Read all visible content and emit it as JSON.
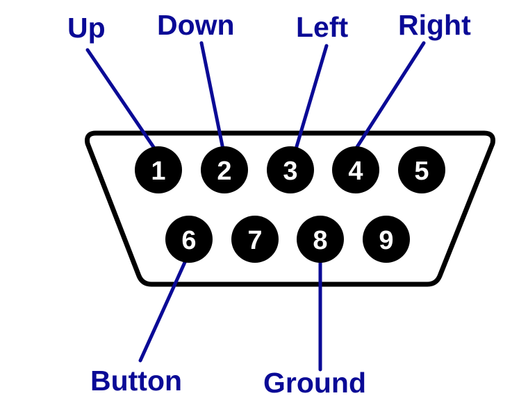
{
  "colors": {
    "label": "#0a0a96",
    "leader_line": "#0a0a96",
    "connector_outline": "#000000",
    "connector_fill": "#ffffff",
    "pin_fill": "#000000",
    "pin_text": "#ffffff"
  },
  "pins": [
    {
      "number": "1"
    },
    {
      "number": "2"
    },
    {
      "number": "3"
    },
    {
      "number": "4"
    },
    {
      "number": "5"
    },
    {
      "number": "6"
    },
    {
      "number": "7"
    },
    {
      "number": "8"
    },
    {
      "number": "9"
    }
  ],
  "labels": [
    {
      "text": "Up",
      "pin": "1"
    },
    {
      "text": "Down",
      "pin": "2"
    },
    {
      "text": "Left",
      "pin": "3"
    },
    {
      "text": "Right",
      "pin": "4"
    },
    {
      "text": "Button",
      "pin": "6"
    },
    {
      "text": "Ground",
      "pin": "8"
    }
  ]
}
